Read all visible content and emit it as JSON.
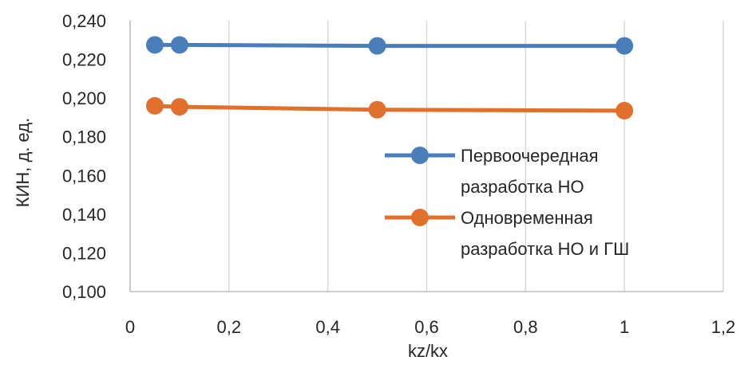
{
  "chart_data": {
    "type": "line",
    "title": "",
    "xlabel": "kz/kx",
    "ylabel": "КИН, д. ед.",
    "xlim": [
      0,
      1.2
    ],
    "ylim": [
      0.1,
      0.24
    ],
    "x_ticks": [
      "0",
      "0,2",
      "0,4",
      "0,6",
      "0,8",
      "1",
      "1,2"
    ],
    "y_ticks": [
      "0,100",
      "0,120",
      "0,140",
      "0,160",
      "0,180",
      "0,200",
      "0,220",
      "0,240"
    ],
    "grid": "vertical",
    "legend_position": "right-inside",
    "series": [
      {
        "name": "Первоочередная разработка НО",
        "legend_lines": [
          "Первоочередная",
          "разработка НО"
        ],
        "color": "#4a7ebb",
        "x": [
          0.05,
          0.1,
          0.5,
          1.0
        ],
        "y": [
          0.2275,
          0.2275,
          0.227,
          0.227
        ]
      },
      {
        "name": "Одновременная разработка НО и ГШ",
        "legend_lines": [
          "Одновременная",
          "разработка НО и ГШ"
        ],
        "color": "#e0702c",
        "x": [
          0.05,
          0.1,
          0.5,
          1.0
        ],
        "y": [
          0.196,
          0.1955,
          0.194,
          0.1935
        ]
      }
    ]
  }
}
